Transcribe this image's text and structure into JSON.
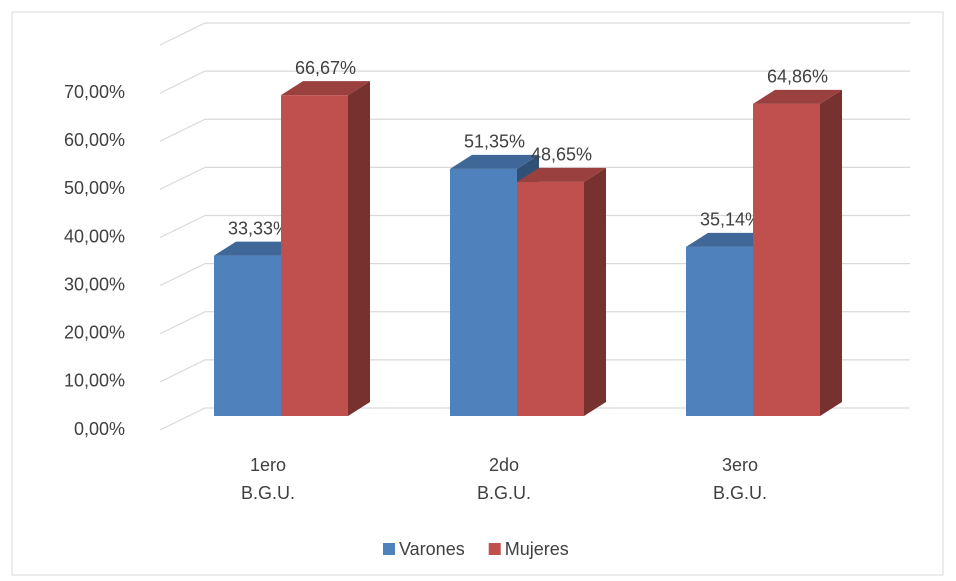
{
  "chart_data": {
    "type": "bar3d",
    "categories": [
      [
        "1ero",
        "B.G.U."
      ],
      [
        "2do",
        "B.G.U."
      ],
      [
        "3ero",
        "B.G.U."
      ]
    ],
    "series": [
      {
        "name": "Varones",
        "color": "#4f81bd",
        "values": [
          33.33,
          51.35,
          35.14
        ],
        "value_labels": [
          "33,33%",
          "51,35%",
          "35,14%"
        ]
      },
      {
        "name": "Mujeres",
        "color": "#c0504d",
        "values": [
          66.67,
          48.65,
          64.86
        ],
        "value_labels": [
          "66,67%",
          "48,65%",
          "64,86%"
        ]
      }
    ],
    "ylim": [
      0,
      80
    ],
    "yticks": [
      {
        "value": 0,
        "label": "0,00%"
      },
      {
        "value": 10,
        "label": "10,00%"
      },
      {
        "value": 20,
        "label": "20,00%"
      },
      {
        "value": 30,
        "label": "30,00%"
      },
      {
        "value": 40,
        "label": "40,00%"
      },
      {
        "value": 50,
        "label": "50,00%"
      },
      {
        "value": 60,
        "label": "60,00%"
      },
      {
        "value": 70,
        "label": "70,00%"
      }
    ],
    "grid": true,
    "legend": "bottom"
  }
}
